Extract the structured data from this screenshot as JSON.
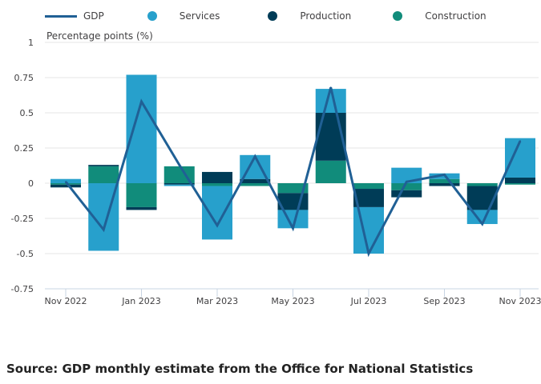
{
  "chart_data": {
    "type": "bar",
    "stacked": true,
    "title": "",
    "ylabel": "Percentage points (%)",
    "xlabel": "",
    "ylim": [
      -0.75,
      1
    ],
    "yticks": [
      -0.75,
      -0.5,
      -0.25,
      0,
      0.25,
      0.5,
      0.75,
      1
    ],
    "ytick_labels": [
      "-0.75",
      "-0.5",
      "-0.25",
      "0",
      "0.25",
      "0.5",
      "0.75",
      "1"
    ],
    "categories": [
      "Nov 2022",
      "Dec 2022",
      "Jan 2023",
      "Feb 2023",
      "Mar 2023",
      "Apr 2023",
      "May 2023",
      "Jun 2023",
      "Jul 2023",
      "Aug 2023",
      "Sep 2023",
      "Oct 2023",
      "Nov 2023"
    ],
    "xtick_labels": [
      "Nov 2022",
      "",
      "Jan 2023",
      "",
      "Mar 2023",
      "",
      "May 2023",
      "",
      "Jul 2023",
      "",
      "Sep 2023",
      "",
      "Nov 2023"
    ],
    "grid": true,
    "legend_position": "top-left",
    "series": [
      {
        "name": "Services",
        "type": "bar",
        "color": "#27a0cc",
        "values": [
          0.03,
          -0.48,
          0.77,
          -0.01,
          -0.38,
          0.17,
          -0.13,
          0.17,
          -0.33,
          0.11,
          0.04,
          -0.1,
          0.28
        ]
      },
      {
        "name": "Production",
        "type": "bar",
        "color": "#003c57",
        "values": [
          -0.02,
          0.01,
          -0.02,
          -0.01,
          0.08,
          0.03,
          -0.12,
          0.34,
          -0.13,
          -0.05,
          -0.02,
          -0.17,
          0.04
        ]
      },
      {
        "name": "Construction",
        "type": "bar",
        "color": "#118c7b",
        "values": [
          -0.01,
          0.12,
          -0.17,
          0.12,
          -0.02,
          -0.02,
          -0.07,
          0.16,
          -0.04,
          -0.05,
          0.03,
          -0.02,
          -0.01
        ]
      },
      {
        "name": "GDP",
        "type": "line",
        "color": "#206095",
        "values": [
          0.01,
          -0.33,
          0.58,
          0.13,
          -0.3,
          0.19,
          -0.32,
          0.68,
          -0.5,
          0.01,
          0.06,
          -0.29,
          0.3
        ]
      }
    ]
  },
  "legend": [
    {
      "name": "GDP",
      "shape": "line",
      "color": "#206095"
    },
    {
      "name": "Services",
      "shape": "dot",
      "color": "#27a0cc"
    },
    {
      "name": "Production",
      "shape": "dot",
      "color": "#003c57"
    },
    {
      "name": "Construction",
      "shape": "dot",
      "color": "#118c7b"
    }
  ],
  "source": "Source: GDP monthly estimate from the Office for National Statistics"
}
